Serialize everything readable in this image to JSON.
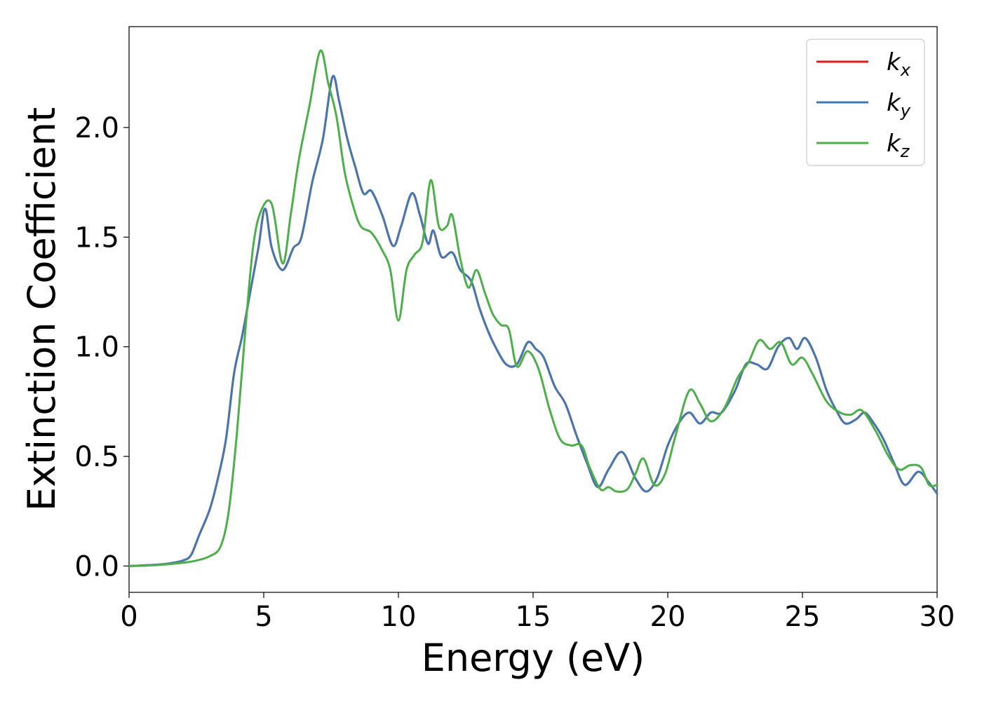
{
  "chart_data": {
    "type": "line",
    "title": "",
    "xlabel": "Energy (eV)",
    "ylabel": "Extinction Coefficient",
    "xlim": [
      0,
      30
    ],
    "ylim": [
      -0.12,
      2.46
    ],
    "xticks": [
      0,
      5,
      10,
      15,
      20,
      25,
      30
    ],
    "xtick_labels": [
      "0",
      "5",
      "10",
      "15",
      "20",
      "25",
      "30"
    ],
    "yticks": [
      0.0,
      0.5,
      1.0,
      1.5,
      2.0
    ],
    "ytick_labels": [
      "0.0",
      "0.5",
      "1.0",
      "1.5",
      "2.0"
    ],
    "grid": false,
    "legend_position": "top-right",
    "series": [
      {
        "name": "k",
        "subscript": "x",
        "color": "#e41a1c",
        "points": [
          [
            0,
            0
          ],
          [
            1,
            0.006
          ],
          [
            1.5,
            0.012
          ],
          [
            2,
            0.025
          ],
          [
            2.3,
            0.05
          ],
          [
            2.6,
            0.14
          ],
          [
            3,
            0.26
          ],
          [
            3.3,
            0.4
          ],
          [
            3.6,
            0.58
          ],
          [
            3.9,
            0.88
          ],
          [
            4.2,
            1.05
          ],
          [
            4.5,
            1.25
          ],
          [
            4.8,
            1.45
          ],
          [
            5.05,
            1.63
          ],
          [
            5.3,
            1.45
          ],
          [
            5.7,
            1.35
          ],
          [
            6.1,
            1.45
          ],
          [
            6.4,
            1.5
          ],
          [
            6.8,
            1.75
          ],
          [
            7.2,
            1.95
          ],
          [
            7.55,
            2.23
          ],
          [
            7.8,
            2.12
          ],
          [
            8.1,
            1.95
          ],
          [
            8.4,
            1.82
          ],
          [
            8.7,
            1.7
          ],
          [
            9,
            1.71
          ],
          [
            9.4,
            1.6
          ],
          [
            9.8,
            1.46
          ],
          [
            10.1,
            1.55
          ],
          [
            10.5,
            1.7
          ],
          [
            10.8,
            1.6
          ],
          [
            11.1,
            1.47
          ],
          [
            11.3,
            1.53
          ],
          [
            11.6,
            1.41
          ],
          [
            12,
            1.43
          ],
          [
            12.3,
            1.35
          ],
          [
            12.7,
            1.3
          ],
          [
            13,
            1.18
          ],
          [
            13.3,
            1.08
          ],
          [
            13.6,
            1.0
          ],
          [
            14,
            0.92
          ],
          [
            14.4,
            0.92
          ],
          [
            14.8,
            1.02
          ],
          [
            15.1,
            0.99
          ],
          [
            15.4,
            0.95
          ],
          [
            15.8,
            0.82
          ],
          [
            16.2,
            0.74
          ],
          [
            16.6,
            0.6
          ],
          [
            17,
            0.47
          ],
          [
            17.4,
            0.36
          ],
          [
            17.8,
            0.44
          ],
          [
            18.3,
            0.52
          ],
          [
            18.8,
            0.4
          ],
          [
            19.2,
            0.34
          ],
          [
            19.6,
            0.4
          ],
          [
            20,
            0.55
          ],
          [
            20.4,
            0.65
          ],
          [
            20.8,
            0.7
          ],
          [
            21.2,
            0.65
          ],
          [
            21.6,
            0.7
          ],
          [
            22,
            0.7
          ],
          [
            22.5,
            0.8
          ],
          [
            22.9,
            0.92
          ],
          [
            23.3,
            0.92
          ],
          [
            23.7,
            0.9
          ],
          [
            24.1,
            1.0
          ],
          [
            24.5,
            1.04
          ],
          [
            24.8,
            0.99
          ],
          [
            25.1,
            1.04
          ],
          [
            25.5,
            0.95
          ],
          [
            25.9,
            0.8
          ],
          [
            26.3,
            0.7
          ],
          [
            26.6,
            0.65
          ],
          [
            27,
            0.67
          ],
          [
            27.3,
            0.7
          ],
          [
            27.6,
            0.66
          ],
          [
            28,
            0.58
          ],
          [
            28.4,
            0.47
          ],
          [
            28.8,
            0.37
          ],
          [
            29.3,
            0.43
          ],
          [
            29.7,
            0.38
          ],
          [
            30,
            0.33
          ]
        ]
      },
      {
        "name": "k",
        "subscript": "y",
        "color": "#4478b0",
        "points": [
          [
            0,
            0
          ],
          [
            1,
            0.006
          ],
          [
            1.5,
            0.012
          ],
          [
            2,
            0.025
          ],
          [
            2.3,
            0.05
          ],
          [
            2.6,
            0.14
          ],
          [
            3,
            0.26
          ],
          [
            3.3,
            0.4
          ],
          [
            3.6,
            0.58
          ],
          [
            3.9,
            0.88
          ],
          [
            4.2,
            1.05
          ],
          [
            4.5,
            1.25
          ],
          [
            4.8,
            1.45
          ],
          [
            5.05,
            1.63
          ],
          [
            5.3,
            1.45
          ],
          [
            5.7,
            1.35
          ],
          [
            6.1,
            1.45
          ],
          [
            6.4,
            1.5
          ],
          [
            6.8,
            1.75
          ],
          [
            7.2,
            1.95
          ],
          [
            7.55,
            2.23
          ],
          [
            7.8,
            2.12
          ],
          [
            8.1,
            1.95
          ],
          [
            8.4,
            1.82
          ],
          [
            8.7,
            1.7
          ],
          [
            9,
            1.71
          ],
          [
            9.4,
            1.6
          ],
          [
            9.8,
            1.46
          ],
          [
            10.1,
            1.55
          ],
          [
            10.5,
            1.7
          ],
          [
            10.8,
            1.6
          ],
          [
            11.1,
            1.47
          ],
          [
            11.3,
            1.53
          ],
          [
            11.6,
            1.41
          ],
          [
            12,
            1.43
          ],
          [
            12.3,
            1.35
          ],
          [
            12.7,
            1.3
          ],
          [
            13,
            1.18
          ],
          [
            13.3,
            1.08
          ],
          [
            13.6,
            1.0
          ],
          [
            14,
            0.92
          ],
          [
            14.4,
            0.92
          ],
          [
            14.8,
            1.02
          ],
          [
            15.1,
            0.99
          ],
          [
            15.4,
            0.95
          ],
          [
            15.8,
            0.82
          ],
          [
            16.2,
            0.74
          ],
          [
            16.6,
            0.6
          ],
          [
            17,
            0.47
          ],
          [
            17.4,
            0.36
          ],
          [
            17.8,
            0.44
          ],
          [
            18.3,
            0.52
          ],
          [
            18.8,
            0.4
          ],
          [
            19.2,
            0.34
          ],
          [
            19.6,
            0.4
          ],
          [
            20,
            0.55
          ],
          [
            20.4,
            0.65
          ],
          [
            20.8,
            0.7
          ],
          [
            21.2,
            0.65
          ],
          [
            21.6,
            0.7
          ],
          [
            22,
            0.7
          ],
          [
            22.5,
            0.8
          ],
          [
            22.9,
            0.92
          ],
          [
            23.3,
            0.92
          ],
          [
            23.7,
            0.9
          ],
          [
            24.1,
            1.0
          ],
          [
            24.5,
            1.04
          ],
          [
            24.8,
            0.99
          ],
          [
            25.1,
            1.04
          ],
          [
            25.5,
            0.95
          ],
          [
            25.9,
            0.8
          ],
          [
            26.3,
            0.7
          ],
          [
            26.6,
            0.65
          ],
          [
            27,
            0.67
          ],
          [
            27.3,
            0.7
          ],
          [
            27.6,
            0.66
          ],
          [
            28,
            0.58
          ],
          [
            28.4,
            0.47
          ],
          [
            28.8,
            0.37
          ],
          [
            29.3,
            0.43
          ],
          [
            29.7,
            0.38
          ],
          [
            30,
            0.33
          ]
        ]
      },
      {
        "name": "k",
        "subscript": "z",
        "color": "#4daf4a",
        "points": [
          [
            0,
            0
          ],
          [
            1,
            0.004
          ],
          [
            2,
            0.015
          ],
          [
            2.5,
            0.025
          ],
          [
            3,
            0.045
          ],
          [
            3.4,
            0.09
          ],
          [
            3.7,
            0.25
          ],
          [
            4,
            0.6
          ],
          [
            4.3,
            1.05
          ],
          [
            4.6,
            1.45
          ],
          [
            4.9,
            1.62
          ],
          [
            5.3,
            1.65
          ],
          [
            5.7,
            1.38
          ],
          [
            6,
            1.6
          ],
          [
            6.3,
            1.85
          ],
          [
            6.7,
            2.1
          ],
          [
            7.1,
            2.35
          ],
          [
            7.4,
            2.2
          ],
          [
            7.7,
            2.05
          ],
          [
            8,
            1.8
          ],
          [
            8.3,
            1.65
          ],
          [
            8.6,
            1.55
          ],
          [
            9,
            1.52
          ],
          [
            9.4,
            1.44
          ],
          [
            9.7,
            1.35
          ],
          [
            10,
            1.12
          ],
          [
            10.3,
            1.35
          ],
          [
            10.6,
            1.42
          ],
          [
            10.9,
            1.48
          ],
          [
            11.2,
            1.76
          ],
          [
            11.5,
            1.55
          ],
          [
            11.8,
            1.55
          ],
          [
            12,
            1.6
          ],
          [
            12.3,
            1.4
          ],
          [
            12.6,
            1.27
          ],
          [
            12.9,
            1.35
          ],
          [
            13.2,
            1.25
          ],
          [
            13.5,
            1.15
          ],
          [
            13.8,
            1.1
          ],
          [
            14.1,
            1.08
          ],
          [
            14.4,
            0.91
          ],
          [
            14.8,
            0.98
          ],
          [
            15.2,
            0.9
          ],
          [
            15.6,
            0.72
          ],
          [
            16,
            0.58
          ],
          [
            16.4,
            0.55
          ],
          [
            16.8,
            0.55
          ],
          [
            17.1,
            0.45
          ],
          [
            17.5,
            0.35
          ],
          [
            17.8,
            0.36
          ],
          [
            18.1,
            0.34
          ],
          [
            18.5,
            0.35
          ],
          [
            18.8,
            0.42
          ],
          [
            19.1,
            0.49
          ],
          [
            19.5,
            0.37
          ],
          [
            19.9,
            0.42
          ],
          [
            20.3,
            0.6
          ],
          [
            20.8,
            0.8
          ],
          [
            21.2,
            0.74
          ],
          [
            21.6,
            0.66
          ],
          [
            22.1,
            0.72
          ],
          [
            22.6,
            0.86
          ],
          [
            23,
            0.93
          ],
          [
            23.4,
            1.03
          ],
          [
            23.8,
            0.99
          ],
          [
            24.2,
            1.02
          ],
          [
            24.6,
            0.92
          ],
          [
            25,
            0.95
          ],
          [
            25.4,
            0.87
          ],
          [
            25.9,
            0.75
          ],
          [
            26.4,
            0.7
          ],
          [
            26.8,
            0.69
          ],
          [
            27.2,
            0.71
          ],
          [
            27.7,
            0.62
          ],
          [
            28.2,
            0.5
          ],
          [
            28.6,
            0.44
          ],
          [
            29,
            0.46
          ],
          [
            29.4,
            0.45
          ],
          [
            29.7,
            0.37
          ],
          [
            30,
            0.37
          ]
        ]
      }
    ]
  }
}
